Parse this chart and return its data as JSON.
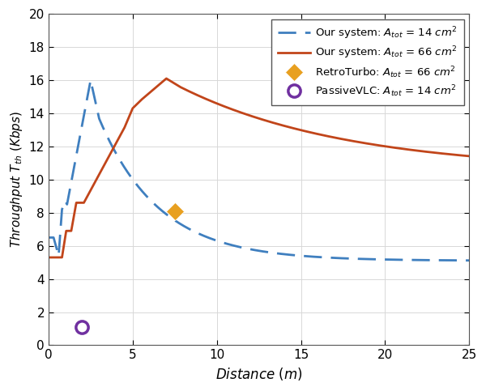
{
  "xlabel": "Distance $(m)$",
  "ylabel": "Throughput $T_{th}$ $(Kbps)$",
  "xlim": [
    0,
    25
  ],
  "ylim": [
    0,
    20
  ],
  "xticks": [
    0,
    5,
    10,
    15,
    20,
    25
  ],
  "yticks": [
    0,
    2,
    4,
    6,
    8,
    10,
    12,
    14,
    16,
    18,
    20
  ],
  "blue_dashed_color": "#3F7FBF",
  "orange_solid_color": "#C1451A",
  "retro_marker_color": "#E8A020",
  "passive_marker_color": "#7030A0",
  "retro_point": [
    7.5,
    8.1
  ],
  "passive_point": [
    2.0,
    1.1
  ],
  "legend_labels": [
    "Our system: $A_{tot}$ = 14 $cm^2$",
    "Our system: $A_{tot}$ = 66 $cm^2$",
    "RetroTurbo: $A_{tot}$ = 66 $cm^2$",
    "PassiveVLC: $A_{tot}$ = 14 $cm^2$"
  ],
  "background_color": "#ffffff",
  "grid_color": "#d8d8d8"
}
